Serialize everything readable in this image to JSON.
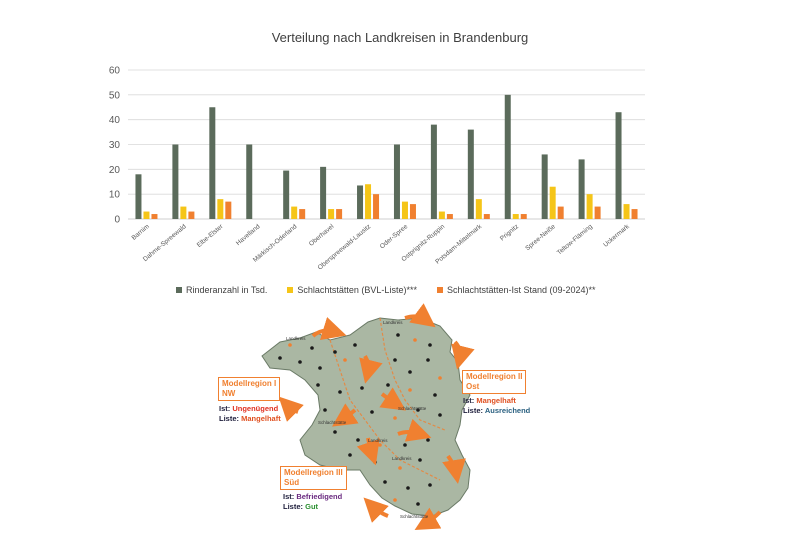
{
  "chart_data": {
    "type": "bar",
    "title": "Verteilung nach Landkreisen in Brandenburg",
    "xlabel": "",
    "ylabel": "",
    "ylim": [
      0,
      60
    ],
    "yticks": [
      0,
      10,
      20,
      30,
      40,
      50,
      60
    ],
    "grid": true,
    "legend_position": "bottom",
    "categories": [
      "Barnim",
      "Dahme-Spreewald",
      "Elbe-Elster",
      "Havelland",
      "Märkisch-Oderland",
      "Oberhavel",
      "Oberspreewald-Lausitz",
      "Oder-Spree",
      "Ostprignitz-Ruppin",
      "Potsdam-Mittelmark",
      "Prignitz",
      "Spree-Neiße",
      "Teltow-Fläming",
      "Uckermark"
    ],
    "series": [
      {
        "name": "Rinderanzahl in Tsd.",
        "color": "#5b6b5b",
        "values": [
          18,
          30,
          45,
          30,
          19.5,
          21,
          13.5,
          30,
          38,
          36,
          50,
          26,
          24,
          43
        ]
      },
      {
        "name": "Schlachtstätten (BVL-Liste)***",
        "color": "#f5c518",
        "values": [
          3,
          5,
          8,
          0,
          5,
          4,
          14,
          7,
          3,
          8,
          2,
          13,
          10,
          6
        ]
      },
      {
        "name": "Schlachtstätten-Ist Stand (09-2024)**",
        "color": "#f08030",
        "values": [
          2,
          3,
          7,
          0,
          4,
          4,
          10,
          6,
          2,
          2,
          2,
          5,
          5,
          4
        ]
      }
    ]
  },
  "map": {
    "regions": [
      {
        "title_line1": "Modellregion I",
        "title_line2": "NW",
        "ist_label": "Ist:",
        "ist_value": "Ungenügend",
        "ist_color": "#e03020",
        "liste_label": "Liste:",
        "liste_value": "Mangelhaft",
        "liste_color": "#e05020"
      },
      {
        "title_line1": "Modellregion II",
        "title_line2": "Ost",
        "ist_label": "Ist:",
        "ist_value": "Mangelhaft",
        "ist_color": "#e05020",
        "liste_label": "Liste:",
        "liste_value": "Ausreichend",
        "liste_color": "#2a6080"
      },
      {
        "title_line1": "Modellregion III",
        "title_line2": "Süd",
        "ist_label": "Ist:",
        "ist_value": "Befriedigend",
        "ist_color": "#6a2a80",
        "liste_label": "Liste:",
        "liste_value": "Gut",
        "liste_color": "#2a9030"
      }
    ],
    "place_labels": [
      "Landkreis",
      "Landkreis",
      "Landkreis",
      "Schlachtstätte",
      "Schlachtstätte",
      "Landkreis",
      "Schlachtstätte"
    ]
  }
}
